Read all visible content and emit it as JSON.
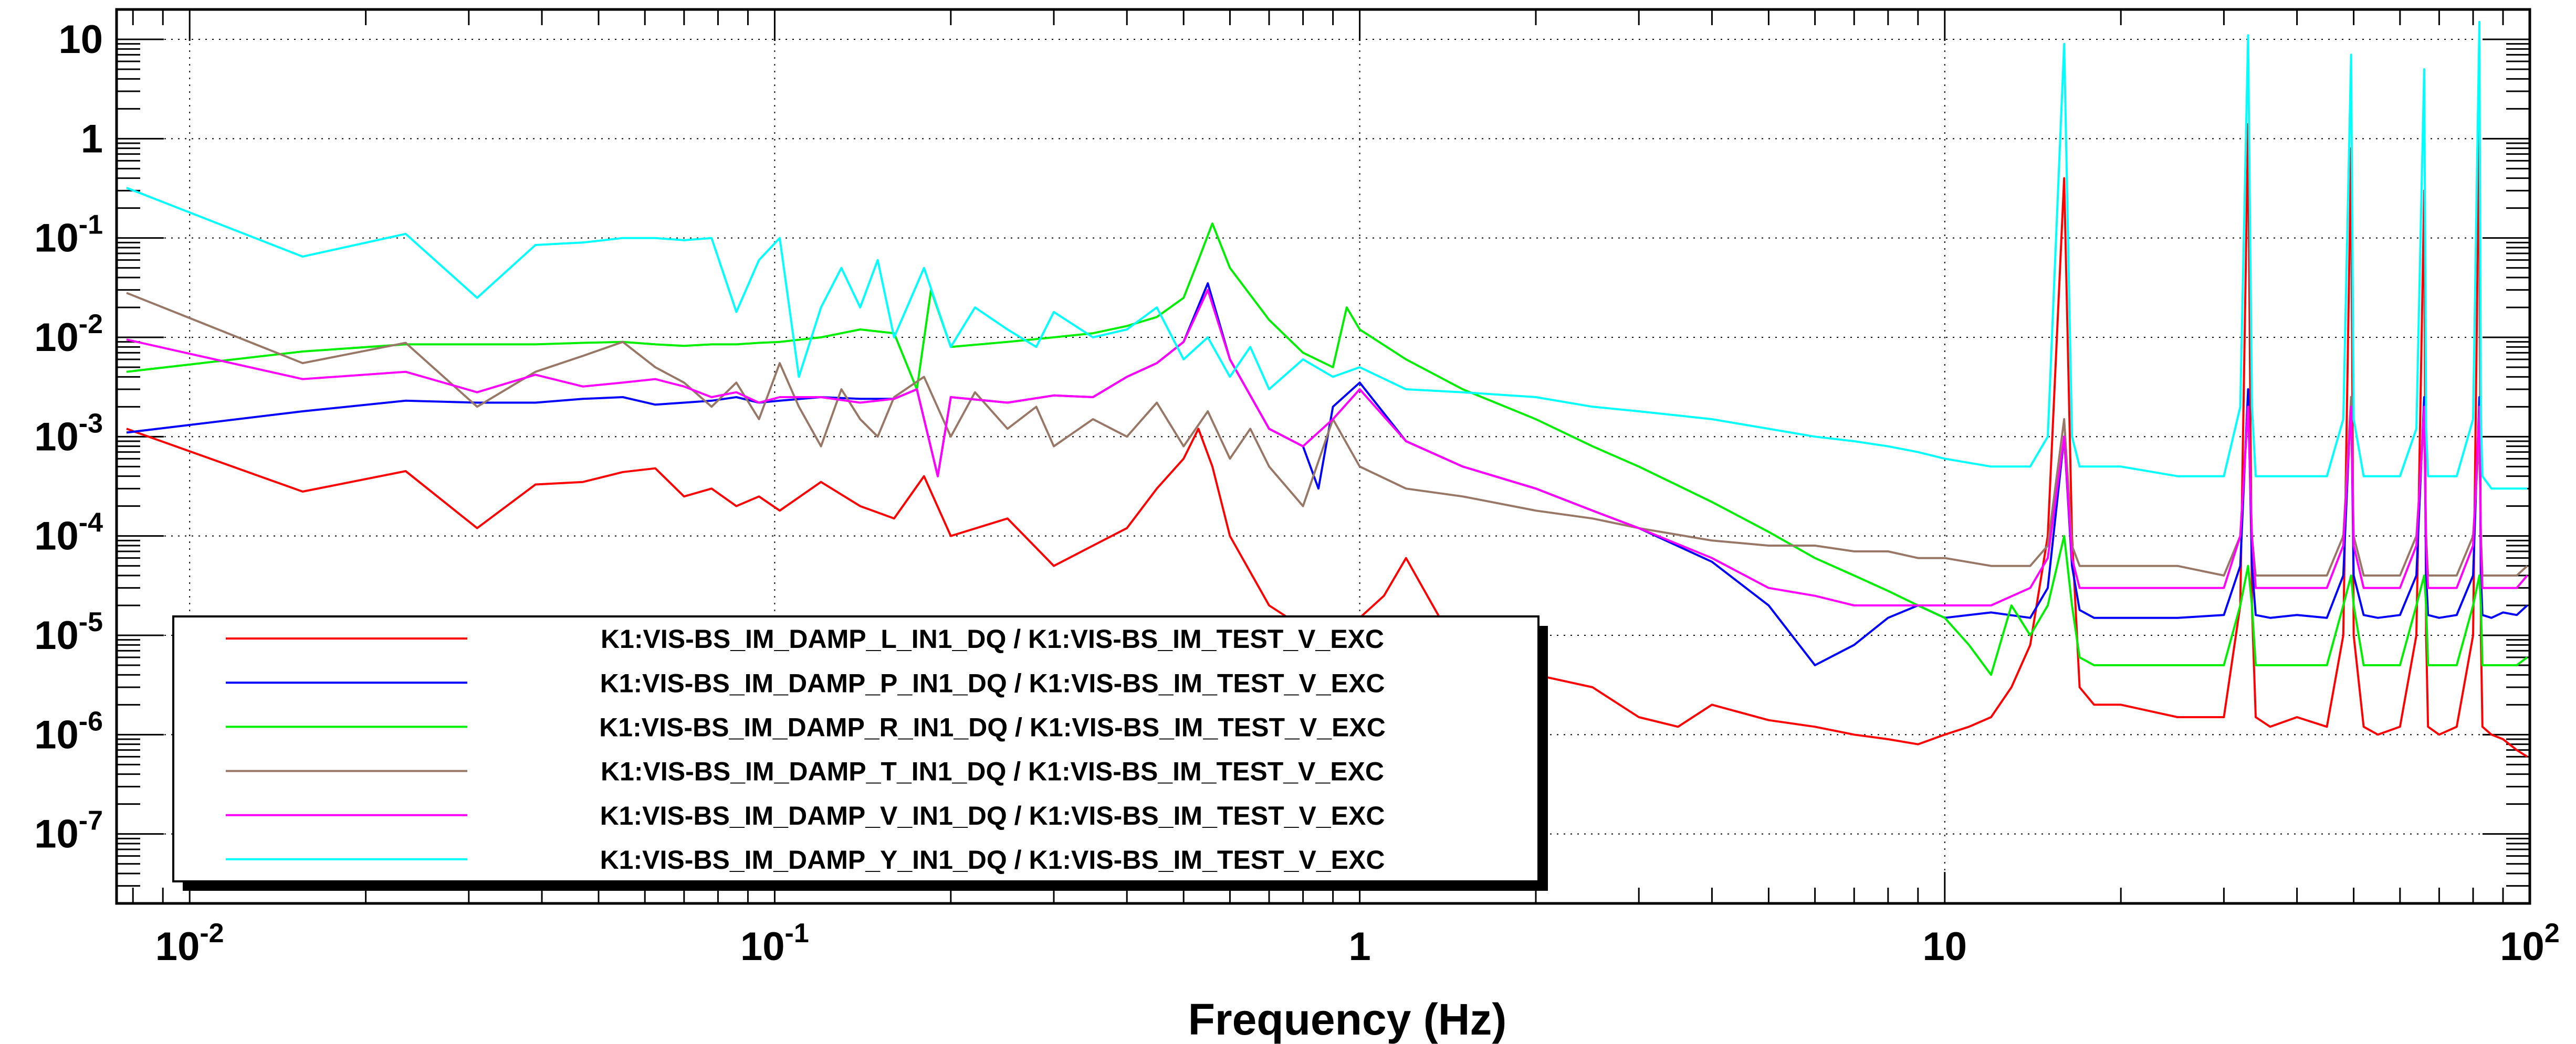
{
  "chart_data": {
    "type": "line",
    "title": "",
    "xlabel": "Frequency (Hz)",
    "ylabel": "",
    "xscale": "log",
    "yscale": "log",
    "xlim": [
      0.0075,
      100
    ],
    "ylim": [
      2e-08,
      20
    ],
    "grid": true,
    "legend_position": "bottom-left",
    "x_ticks": [
      {
        "value": 0.01,
        "base": "10",
        "exp": "-2"
      },
      {
        "value": 0.1,
        "base": "10",
        "exp": "-1"
      },
      {
        "value": 1,
        "base": "1",
        "exp": ""
      },
      {
        "value": 10,
        "base": "10",
        "exp": ""
      },
      {
        "value": 100,
        "base": "10",
        "exp": "2"
      }
    ],
    "y_ticks": [
      {
        "value": 10,
        "base": "10",
        "exp": ""
      },
      {
        "value": 1,
        "base": "1",
        "exp": ""
      },
      {
        "value": 0.1,
        "base": "10",
        "exp": "-1"
      },
      {
        "value": 0.01,
        "base": "10",
        "exp": "-2"
      },
      {
        "value": 0.001,
        "base": "10",
        "exp": "-3"
      },
      {
        "value": 0.0001,
        "base": "10",
        "exp": "-4"
      },
      {
        "value": 1e-05,
        "base": "10",
        "exp": "-5"
      },
      {
        "value": 1e-06,
        "base": "10",
        "exp": "-6"
      },
      {
        "value": 1e-07,
        "base": "10",
        "exp": "-7"
      }
    ],
    "series": [
      {
        "name": "K1:VIS-BS_IM_DAMP_L_IN1_DQ / K1:VIS-BS_IM_TEST_V_EXC",
        "color": "#ff0000",
        "x": [
          0.0078,
          0.0156,
          0.0234,
          0.031,
          0.039,
          0.047,
          0.055,
          0.0625,
          0.07,
          0.078,
          0.086,
          0.094,
          0.102,
          0.12,
          0.14,
          0.16,
          0.18,
          0.2,
          0.25,
          0.3,
          0.35,
          0.4,
          0.45,
          0.5,
          0.53,
          0.56,
          0.6,
          0.7,
          0.8,
          0.9,
          1.0,
          1.1,
          1.2,
          1.4,
          1.6,
          2.0,
          2.5,
          3.0,
          3.5,
          4.0,
          5.0,
          6.0,
          7.0,
          8.0,
          9.0,
          10,
          11,
          12,
          13,
          14,
          15,
          16,
          16.5,
          17,
          18,
          20,
          25,
          30,
          32,
          33,
          33.5,
          34,
          36,
          40,
          45,
          48,
          49.5,
          50,
          52,
          55,
          60,
          64,
          66,
          66.5,
          67,
          70,
          75,
          80,
          82,
          82.5,
          83,
          86,
          90,
          95,
          99
        ],
        "values": [
          0.0012,
          0.00028,
          0.00045,
          0.00012,
          0.00033,
          0.00035,
          0.00044,
          0.00048,
          0.00025,
          0.0003,
          0.0002,
          0.00025,
          0.00018,
          0.00035,
          0.0002,
          0.00015,
          0.0004,
          0.0001,
          0.00015,
          5e-05,
          8e-05,
          0.00012,
          0.0003,
          0.0006,
          0.0012,
          0.0005,
          0.0001,
          2e-05,
          1.2e-05,
          1e-05,
          1.5e-05,
          2.5e-05,
          6e-05,
          1.2e-05,
          6e-06,
          4e-06,
          3e-06,
          1.5e-06,
          1.2e-06,
          2e-06,
          1.4e-06,
          1.2e-06,
          1e-06,
          9e-07,
          8e-07,
          1e-06,
          1.2e-06,
          1.5e-06,
          3e-06,
          8e-06,
          0.0001,
          0.4,
          0.0001,
          3e-06,
          2e-06,
          2e-06,
          1.5e-06,
          1.5e-06,
          2e-05,
          1.4,
          2e-05,
          1.5e-06,
          1.2e-06,
          1.5e-06,
          1.2e-06,
          1e-05,
          0.8,
          1e-05,
          1.2e-06,
          1e-06,
          1.2e-06,
          1e-05,
          0.3,
          1e-05,
          1.2e-06,
          1e-06,
          1.2e-06,
          1e-05,
          1.8,
          1e-05,
          1.2e-06,
          1e-06,
          9e-07,
          7e-07,
          6e-07
        ]
      },
      {
        "name": "K1:VIS-BS_IM_DAMP_P_IN1_DQ / K1:VIS-BS_IM_TEST_V_EXC",
        "color": "#0000ff",
        "x": [
          0.0078,
          0.0156,
          0.0234,
          0.031,
          0.039,
          0.047,
          0.055,
          0.0625,
          0.07,
          0.078,
          0.086,
          0.094,
          0.102,
          0.12,
          0.14,
          0.16,
          0.175,
          0.19,
          0.2,
          0.25,
          0.3,
          0.35,
          0.4,
          0.45,
          0.5,
          0.55,
          0.6,
          0.7,
          0.8,
          0.85,
          0.9,
          1.0,
          1.2,
          1.5,
          2.0,
          2.5,
          3.0,
          4.0,
          5.0,
          6.0,
          7.0,
          8.0,
          9.0,
          10,
          12,
          14,
          15,
          16,
          16.5,
          17,
          18,
          20,
          25,
          30,
          32,
          33,
          33.5,
          34,
          36,
          40,
          45,
          48,
          49.5,
          50,
          52,
          55,
          60,
          64,
          66,
          66.5,
          67,
          70,
          75,
          80,
          82,
          82.5,
          83,
          86,
          90,
          95,
          99
        ],
        "values": [
          0.0011,
          0.0018,
          0.0023,
          0.0022,
          0.0022,
          0.0024,
          0.0025,
          0.0021,
          0.0022,
          0.0023,
          0.0025,
          0.0022,
          0.0023,
          0.0025,
          0.0024,
          0.0024,
          0.003,
          0.0004,
          0.0025,
          0.0022,
          0.0026,
          0.0025,
          0.004,
          0.0055,
          0.009,
          0.035,
          0.006,
          0.0012,
          0.0008,
          0.0003,
          0.002,
          0.0035,
          0.0009,
          0.0005,
          0.0003,
          0.00018,
          0.00012,
          5.5e-05,
          2e-05,
          5e-06,
          8e-06,
          1.5e-05,
          2e-05,
          1.5e-05,
          1.7e-05,
          1.5e-05,
          3e-05,
          0.001,
          5e-05,
          1.8e-05,
          1.5e-05,
          1.5e-05,
          1.5e-05,
          1.6e-05,
          5e-05,
          0.003,
          5e-05,
          1.6e-05,
          1.5e-05,
          1.6e-05,
          1.5e-05,
          4e-05,
          0.0025,
          4e-05,
          1.6e-05,
          1.5e-05,
          1.6e-05,
          4e-05,
          0.0025,
          4e-05,
          1.6e-05,
          1.5e-05,
          1.6e-05,
          4e-05,
          0.0025,
          4e-05,
          1.6e-05,
          1.5e-05,
          1.7e-05,
          1.6e-05,
          2e-05
        ]
      },
      {
        "name": "K1:VIS-BS_IM_DAMP_R_IN1_DQ / K1:VIS-BS_IM_TEST_V_EXC",
        "color": "#00ee00",
        "x": [
          0.0078,
          0.0156,
          0.0234,
          0.031,
          0.039,
          0.047,
          0.055,
          0.0625,
          0.07,
          0.078,
          0.086,
          0.094,
          0.102,
          0.12,
          0.14,
          0.16,
          0.175,
          0.185,
          0.2,
          0.25,
          0.3,
          0.35,
          0.4,
          0.45,
          0.5,
          0.53,
          0.56,
          0.6,
          0.7,
          0.8,
          0.9,
          0.95,
          1.0,
          1.2,
          1.5,
          2.0,
          2.5,
          3.0,
          4.0,
          5.0,
          6.0,
          7.0,
          8.0,
          9.0,
          10,
          11,
          12,
          13,
          14,
          15,
          16,
          16.5,
          17,
          18,
          20,
          25,
          30,
          32,
          33,
          33.5,
          34,
          36,
          40,
          45,
          48,
          49.5,
          50,
          52,
          55,
          60,
          64,
          66,
          66.5,
          67,
          70,
          75,
          80,
          82,
          82.5,
          83,
          86,
          90,
          95,
          99
        ],
        "values": [
          0.0045,
          0.0072,
          0.0085,
          0.0085,
          0.0085,
          0.0088,
          0.009,
          0.0085,
          0.0082,
          0.0085,
          0.0085,
          0.0088,
          0.009,
          0.01,
          0.012,
          0.011,
          0.003,
          0.03,
          0.008,
          0.009,
          0.01,
          0.011,
          0.013,
          0.016,
          0.025,
          0.06,
          0.14,
          0.05,
          0.015,
          0.007,
          0.005,
          0.02,
          0.012,
          0.006,
          0.003,
          0.0015,
          0.0008,
          0.0005,
          0.00022,
          0.00011,
          6e-05,
          4e-05,
          2.8e-05,
          2e-05,
          1.5e-05,
          8e-06,
          4e-06,
          2e-05,
          1e-05,
          2e-05,
          0.0001,
          2e-05,
          6e-06,
          5e-06,
          5e-06,
          5e-06,
          5e-06,
          2e-05,
          5e-05,
          2e-05,
          5e-06,
          5e-06,
          5e-06,
          5e-06,
          2e-05,
          4e-05,
          2e-05,
          5e-06,
          5e-06,
          5e-06,
          2e-05,
          4e-05,
          2e-05,
          5e-06,
          5e-06,
          5e-06,
          2e-05,
          4e-05,
          2e-05,
          5e-06,
          5e-06,
          5e-06,
          5e-06,
          6e-06
        ]
      },
      {
        "name": "K1:VIS-BS_IM_DAMP_T_IN1_DQ / K1:VIS-BS_IM_TEST_V_EXC",
        "color": "#997766",
        "x": [
          0.0078,
          0.0156,
          0.0234,
          0.031,
          0.039,
          0.047,
          0.055,
          0.0625,
          0.07,
          0.078,
          0.086,
          0.094,
          0.102,
          0.11,
          0.12,
          0.13,
          0.14,
          0.15,
          0.16,
          0.18,
          0.2,
          0.22,
          0.25,
          0.28,
          0.3,
          0.35,
          0.4,
          0.45,
          0.5,
          0.55,
          0.6,
          0.65,
          0.7,
          0.8,
          0.9,
          1.0,
          1.2,
          1.5,
          2.0,
          2.5,
          3.0,
          4.0,
          5.0,
          6.0,
          7.0,
          8.0,
          9.0,
          10,
          12,
          14,
          15,
          16,
          16.5,
          17,
          18,
          20,
          25,
          30,
          32,
          33,
          33.5,
          34,
          36,
          40,
          45,
          48,
          49.5,
          50,
          52,
          55,
          60,
          64,
          66,
          66.5,
          67,
          70,
          75,
          80,
          82,
          82.5,
          83,
          86,
          90,
          95,
          99
        ],
        "values": [
          0.028,
          0.0055,
          0.0088,
          0.002,
          0.0045,
          0.0065,
          0.009,
          0.005,
          0.0035,
          0.002,
          0.0035,
          0.0015,
          0.0055,
          0.002,
          0.0008,
          0.003,
          0.0015,
          0.001,
          0.0025,
          0.004,
          0.001,
          0.0028,
          0.0012,
          0.002,
          0.0008,
          0.0015,
          0.001,
          0.0022,
          0.0008,
          0.0018,
          0.0006,
          0.0012,
          0.0005,
          0.0002,
          0.0015,
          0.0005,
          0.0003,
          0.00025,
          0.00018,
          0.00015,
          0.00012,
          9e-05,
          8e-05,
          8e-05,
          7e-05,
          7e-05,
          6e-05,
          6e-05,
          5e-05,
          5e-05,
          8e-05,
          0.0015,
          8e-05,
          5e-05,
          5e-05,
          5e-05,
          5e-05,
          4e-05,
          0.0001,
          0.002,
          0.0001,
          4e-05,
          4e-05,
          4e-05,
          4e-05,
          0.0001,
          0.0025,
          0.0001,
          4e-05,
          4e-05,
          4e-05,
          0.0001,
          0.0015,
          0.0001,
          4e-05,
          4e-05,
          4e-05,
          0.0001,
          0.001,
          0.0001,
          4e-05,
          4e-05,
          4e-05,
          4e-05,
          5e-05
        ]
      },
      {
        "name": "K1:VIS-BS_IM_DAMP_V_IN1_DQ / K1:VIS-BS_IM_TEST_V_EXC",
        "color": "#ff00ff",
        "x": [
          0.0078,
          0.0156,
          0.0234,
          0.031,
          0.039,
          0.047,
          0.055,
          0.0625,
          0.07,
          0.078,
          0.086,
          0.094,
          0.102,
          0.12,
          0.14,
          0.16,
          0.175,
          0.19,
          0.2,
          0.25,
          0.3,
          0.35,
          0.4,
          0.45,
          0.5,
          0.55,
          0.6,
          0.7,
          0.8,
          0.9,
          1.0,
          1.2,
          1.5,
          2.0,
          2.5,
          3.0,
          4.0,
          5.0,
          6.0,
          7.0,
          8.0,
          9.0,
          10,
          12,
          14,
          15,
          16,
          16.5,
          17,
          18,
          20,
          25,
          30,
          32,
          33,
          33.5,
          34,
          36,
          40,
          45,
          48,
          49.5,
          50,
          52,
          55,
          60,
          64,
          66,
          66.5,
          67,
          70,
          75,
          80,
          82,
          82.5,
          83,
          86,
          90,
          95,
          99
        ],
        "values": [
          0.0095,
          0.0038,
          0.0045,
          0.0028,
          0.0042,
          0.0032,
          0.0035,
          0.0038,
          0.0032,
          0.0025,
          0.0028,
          0.0022,
          0.0025,
          0.0025,
          0.0022,
          0.0024,
          0.003,
          0.0004,
          0.0025,
          0.0022,
          0.0026,
          0.0025,
          0.004,
          0.0055,
          0.009,
          0.03,
          0.006,
          0.0012,
          0.0008,
          0.0015,
          0.003,
          0.0009,
          0.0005,
          0.0003,
          0.00018,
          0.00012,
          6e-05,
          3e-05,
          2.5e-05,
          2e-05,
          2e-05,
          2e-05,
          2e-05,
          2e-05,
          3e-05,
          6e-05,
          0.001,
          6e-05,
          3e-05,
          3e-05,
          3e-05,
          3e-05,
          3e-05,
          0.0001,
          0.002,
          0.0001,
          3e-05,
          3e-05,
          3e-05,
          3e-05,
          8e-05,
          0.002,
          8e-05,
          3e-05,
          3e-05,
          3e-05,
          8e-05,
          0.002,
          8e-05,
          3e-05,
          3e-05,
          3e-05,
          8e-05,
          0.002,
          8e-05,
          3e-05,
          3e-05,
          3e-05,
          3e-05,
          4e-05
        ]
      },
      {
        "name": "K1:VIS-BS_IM_DAMP_Y_IN1_DQ / K1:VIS-BS_IM_TEST_V_EXC",
        "color": "#00ffff",
        "x": [
          0.0078,
          0.0156,
          0.0234,
          0.031,
          0.039,
          0.047,
          0.055,
          0.0625,
          0.07,
          0.078,
          0.086,
          0.094,
          0.102,
          0.11,
          0.12,
          0.13,
          0.14,
          0.15,
          0.16,
          0.18,
          0.2,
          0.22,
          0.25,
          0.28,
          0.3,
          0.35,
          0.4,
          0.45,
          0.5,
          0.55,
          0.6,
          0.65,
          0.7,
          0.8,
          0.9,
          1.0,
          1.2,
          1.5,
          2.0,
          2.5,
          3.0,
          4.0,
          5.0,
          6.0,
          7.0,
          8.0,
          9.0,
          10,
          12,
          14,
          15,
          16,
          16.5,
          17,
          18,
          20,
          25,
          30,
          32,
          33,
          33.5,
          34,
          36,
          40,
          45,
          48,
          49.5,
          50,
          52,
          55,
          60,
          64,
          66,
          66.5,
          67,
          70,
          75,
          80,
          82,
          82.5,
          83,
          86,
          90,
          95,
          99
        ],
        "values": [
          0.32,
          0.065,
          0.11,
          0.025,
          0.085,
          0.09,
          0.1,
          0.1,
          0.095,
          0.1,
          0.018,
          0.06,
          0.1,
          0.004,
          0.02,
          0.05,
          0.02,
          0.06,
          0.01,
          0.05,
          0.008,
          0.02,
          0.012,
          0.008,
          0.018,
          0.01,
          0.012,
          0.02,
          0.006,
          0.01,
          0.004,
          0.008,
          0.003,
          0.006,
          0.004,
          0.005,
          0.003,
          0.0028,
          0.0025,
          0.002,
          0.0018,
          0.0015,
          0.0012,
          0.001,
          0.0009,
          0.0008,
          0.0007,
          0.0006,
          0.0005,
          0.0005,
          0.001,
          9,
          0.001,
          0.0005,
          0.0005,
          0.0005,
          0.0004,
          0.0004,
          0.002,
          11,
          0.002,
          0.0004,
          0.0004,
          0.0004,
          0.0004,
          0.0015,
          7,
          0.0015,
          0.0004,
          0.0004,
          0.0004,
          0.0012,
          5,
          0.0012,
          0.0004,
          0.0004,
          0.0004,
          0.0015,
          15,
          0.0015,
          0.0004,
          0.0003,
          0.0003,
          0.0003,
          0.0003
        ]
      }
    ]
  },
  "colors": {
    "background": "#ffffff",
    "frame": "#000000",
    "grid": "#000000"
  }
}
